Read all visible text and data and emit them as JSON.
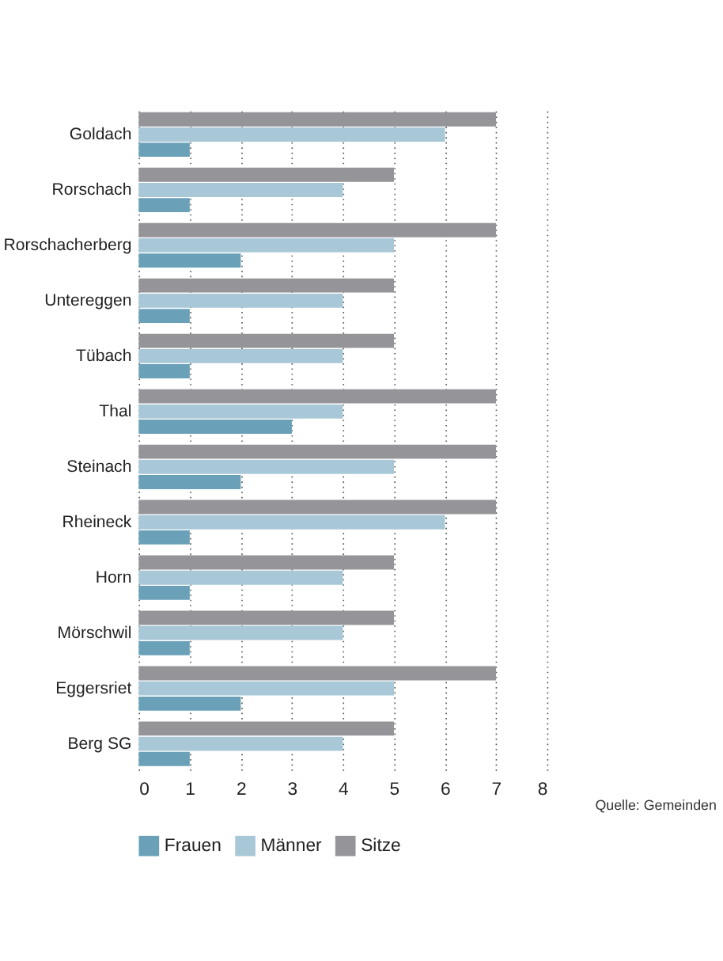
{
  "chart_data": {
    "type": "bar",
    "orientation": "horizontal",
    "categories": [
      "Goldach",
      "Rorschach",
      "Rorschacherberg",
      "Untereggen",
      "Tübach",
      "Thal",
      "Steinach",
      "Rheineck",
      "Horn",
      "Mörschwil",
      "Eggersriet",
      "Berg SG"
    ],
    "series": [
      {
        "name": "Frauen",
        "color": "#6aa1b9",
        "values": [
          1,
          1,
          2,
          1,
          1,
          3,
          2,
          1,
          1,
          1,
          2,
          1
        ]
      },
      {
        "name": "Männer",
        "color": "#a8c8d8",
        "values": [
          6,
          4,
          5,
          4,
          4,
          4,
          5,
          6,
          4,
          4,
          5,
          4
        ]
      },
      {
        "name": "Sitze",
        "color": "#959599",
        "values": [
          7,
          5,
          7,
          5,
          5,
          7,
          7,
          7,
          5,
          5,
          7,
          5
        ]
      }
    ],
    "xlim": [
      0,
      8
    ],
    "xticks": [
      0,
      1,
      2,
      3,
      4,
      5,
      6,
      7,
      8
    ],
    "grid": "x",
    "legend": "bottom",
    "annotations": [
      "Quelle: Gemeinden"
    ]
  }
}
